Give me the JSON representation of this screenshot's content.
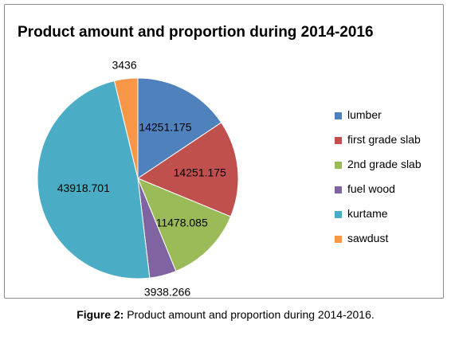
{
  "chart_data": {
    "type": "pie",
    "title": "Product amount and proportion during 2014-2016",
    "labels": [
      "lumber",
      "first grade slab",
      "2nd grade slab",
      "fuel wood",
      "kurtame",
      "sawdust"
    ],
    "values": [
      14251.175,
      14251.175,
      11478.085,
      3938.266,
      43918.701,
      3436
    ],
    "data_labels": [
      "14251.175",
      "14251.175",
      "11478.085",
      "3938.266",
      "43918.701",
      "3436"
    ],
    "colors": [
      "#4f81bd",
      "#c0504d",
      "#9bbb59",
      "#8064a2",
      "#4bacc6",
      "#f79646"
    ],
    "legend_position": "right"
  },
  "caption": {
    "figure_label": "Figure 2:",
    "text": " Product amount and proportion during 2014-2016."
  }
}
